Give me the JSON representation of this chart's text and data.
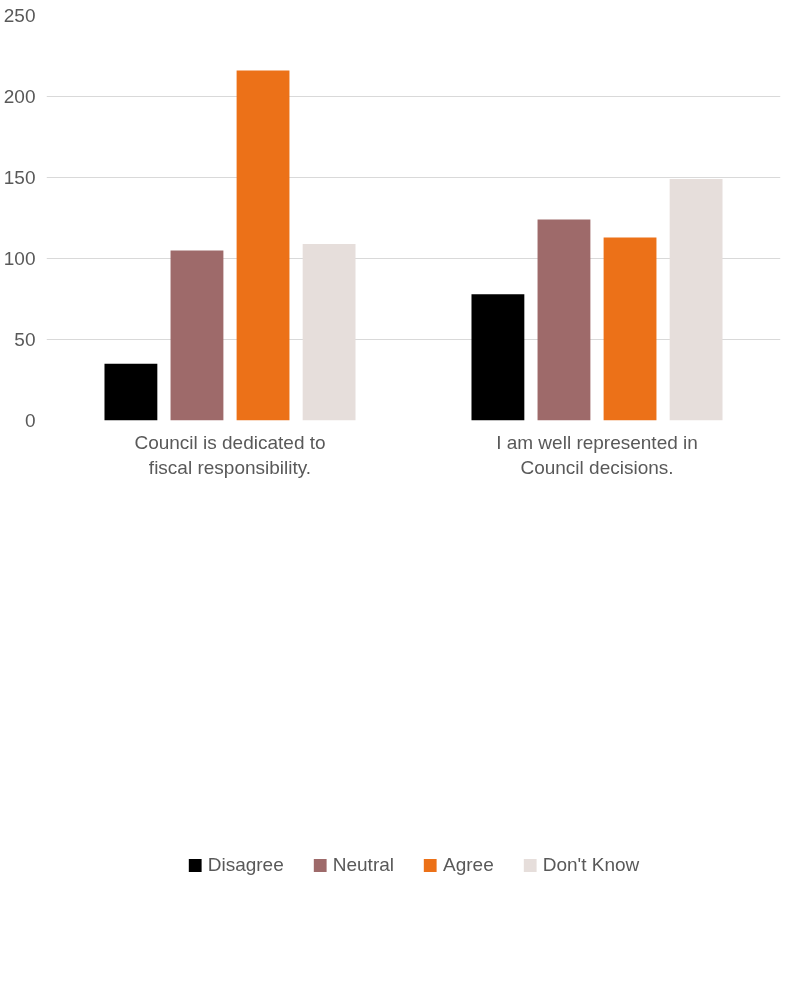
{
  "chart_data": {
    "type": "bar",
    "categories": [
      "Council is dedicated to fiscal responsibility.",
      "I am well represented in Council decisions."
    ],
    "series": [
      {
        "name": "Disagree",
        "color": "#000000",
        "values": [
          35,
          78
        ]
      },
      {
        "name": "Neutral",
        "color": "#9e6a6a",
        "values": [
          105,
          124
        ]
      },
      {
        "name": "Agree",
        "color": "#ec7118",
        "values": [
          216,
          113
        ]
      },
      {
        "name": "Don't Know",
        "color": "#e6dedb",
        "values": [
          109,
          149
        ]
      }
    ],
    "ylim": [
      0,
      250
    ],
    "yticks": [
      0,
      50,
      100,
      150,
      200,
      250
    ],
    "grid": "y",
    "legend": "bottom"
  }
}
